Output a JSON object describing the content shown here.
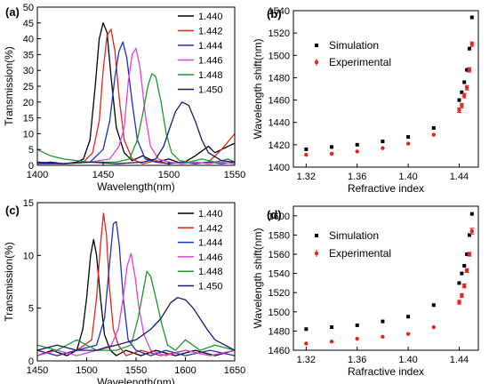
{
  "panels": [
    {
      "label": "(a)",
      "chart_data": {
        "type": "line",
        "xlabel": "Wavelength(nm)",
        "ylabel": "Transmission(%)",
        "xlim": [
          1400,
          1550
        ],
        "ylim": [
          0,
          50
        ],
        "xticks": [
          1400,
          1450,
          1500,
          1550
        ],
        "yticks": [
          0,
          5,
          10,
          15,
          20,
          25,
          30,
          35,
          40,
          45,
          50
        ],
        "legend_position": "top-right",
        "series": [
          {
            "name": "1.440",
            "color": "#000000",
            "x": [
              1400,
              1410,
              1420,
              1430,
              1435,
              1440,
              1444,
              1447,
              1450,
              1453,
              1456,
              1460,
              1466,
              1472,
              1480,
              1490,
              1500,
              1510,
              1520,
              1530,
              1535,
              1540,
              1545,
              1550
            ],
            "y": [
              0.5,
              1,
              0.5,
              1,
              2,
              8,
              25,
              40,
              45,
              42,
              28,
              12,
              4,
              1.5,
              3,
              1,
              2,
              0.5,
              3,
              6,
              4,
              5,
              6,
              7
            ]
          },
          {
            "name": "1.442",
            "color": "#e8231c",
            "x": [
              1400,
              1420,
              1435,
              1442,
              1447,
              1450,
              1453,
              1456,
              1459,
              1462,
              1466,
              1472,
              1480,
              1490,
              1500,
              1510,
              1520,
              1530,
              1540,
              1550
            ],
            "y": [
              1,
              0.5,
              1,
              4,
              14,
              30,
              41,
              43,
              36,
              22,
              8,
              2,
              0.5,
              1.5,
              0.5,
              1,
              0.5,
              1,
              5,
              10
            ]
          },
          {
            "name": "1.444",
            "color": "#1f2fbf",
            "x": [
              1400,
              1420,
              1440,
              1450,
              1455,
              1459,
              1462,
              1465,
              1468,
              1472,
              1476,
              1482,
              1490,
              1500,
              1510,
              1520,
              1530,
              1540,
              1550
            ],
            "y": [
              0.5,
              0.5,
              1,
              5,
              14,
              28,
              36,
              39,
              34,
              20,
              8,
              2,
              1,
              0.5,
              1,
              0.5,
              1,
              0.5,
              1
            ]
          },
          {
            "name": "1.446",
            "color": "#e040e0",
            "x": [
              1400,
              1420,
              1440,
              1455,
              1462,
              1466,
              1469,
              1472,
              1475,
              1478,
              1482,
              1486,
              1492,
              1500,
              1510,
              1520,
              1530,
              1540,
              1550
            ],
            "y": [
              1,
              0.5,
              1,
              2,
              6,
              12,
              26,
              35,
              37,
              31,
              16,
              6,
              2,
              1,
              0.5,
              1,
              0.5,
              1,
              0.5
            ]
          },
          {
            "name": "1.448",
            "color": "#1b9a2a",
            "x": [
              1400,
              1410,
              1420,
              1430,
              1440,
              1450,
              1460,
              1470,
              1476,
              1480,
              1484,
              1487,
              1490,
              1494,
              1498,
              1502,
              1508,
              1515,
              1525,
              1535,
              1545,
              1550
            ],
            "y": [
              5,
              3,
              2,
              1.5,
              1,
              1,
              1,
              2,
              8,
              16,
              25,
              29,
              28,
              20,
              10,
              4,
              1.5,
              1,
              2,
              1,
              2,
              1
            ]
          },
          {
            "name": "1.450",
            "color": "#191970",
            "x": [
              1400,
              1420,
              1440,
              1460,
              1480,
              1490,
              1496,
              1500,
              1505,
              1510,
              1515,
              1520,
              1525,
              1530,
              1540,
              1550
            ],
            "y": [
              1,
              0.5,
              1,
              0.5,
              1,
              2,
              6,
              11,
              17,
              20,
              19,
              14,
              8,
              4,
              1.5,
              1
            ]
          }
        ]
      }
    },
    {
      "label": "(b)",
      "chart_data": {
        "type": "scatter",
        "xlabel": "Refractive index",
        "ylabel": "Wavelength shift(nm)",
        "xlim": [
          1.31,
          1.455
        ],
        "ylim": [
          1400,
          1540
        ],
        "xticks": [
          1.32,
          1.36,
          1.4,
          1.44
        ],
        "xtick_labels": [
          "1.32",
          "1.36",
          "1.40",
          "1.44"
        ],
        "yticks": [
          1400,
          1420,
          1440,
          1460,
          1480,
          1500,
          1520,
          1540
        ],
        "legend_position": "top-left",
        "series": [
          {
            "name": "Simulation",
            "color": "#000000",
            "marker": "square",
            "x": [
              1.32,
              1.34,
              1.36,
              1.38,
              1.4,
              1.42,
              1.44,
              1.442,
              1.444,
              1.446,
              1.448,
              1.45
            ],
            "y": [
              1416,
              1418,
              1420,
              1423,
              1427,
              1435,
              1460,
              1467,
              1476,
              1487,
              1506,
              1534
            ]
          },
          {
            "name": "Experimental",
            "color": "#e8231c",
            "marker": "dot",
            "x": [
              1.32,
              1.34,
              1.36,
              1.38,
              1.4,
              1.42,
              1.44,
              1.442,
              1.444,
              1.446,
              1.448,
              1.45
            ],
            "y": [
              1411,
              1412,
              1414,
              1417,
              1421,
              1429,
              1451,
              1455,
              1464,
              1471,
              1487,
              1510
            ],
            "err": [
              0,
              0,
              0,
              0,
              0,
              0,
              2,
              2,
              2,
              2,
              2,
              2
            ]
          }
        ]
      }
    },
    {
      "label": "(c)",
      "chart_data": {
        "type": "line",
        "xlabel": "Wavelength(nm)",
        "ylabel": "Transmission(%)",
        "xlim": [
          1450,
          1650
        ],
        "ylim": [
          0,
          15
        ],
        "xticks": [
          1450,
          1500,
          1550,
          1600,
          1650
        ],
        "yticks": [
          0,
          5,
          10,
          15
        ],
        "legend_position": "top-right",
        "series": [
          {
            "name": "1.440",
            "color": "#000000",
            "x": [
              1450,
              1465,
              1480,
              1490,
              1496,
              1500,
              1504,
              1507,
              1510,
              1514,
              1518,
              1524,
              1530,
              1540,
              1555,
              1570,
              1590,
              1610,
              1630,
              1650
            ],
            "y": [
              0.5,
              1,
              0.5,
              1,
              3,
              6,
              10,
              11.5,
              10,
              6,
              2.5,
              1,
              0.5,
              1,
              0.5,
              1,
              0.5,
              1,
              0.5,
              1
            ]
          },
          {
            "name": "1.442",
            "color": "#e8231c",
            "x": [
              1450,
              1470,
              1490,
              1505,
              1510,
              1514,
              1517,
              1520,
              1523,
              1527,
              1532,
              1540,
              1555,
              1575,
              1600,
              1625,
              1650
            ],
            "y": [
              1,
              0.5,
              1,
              2,
              6,
              11,
              14,
              12,
              7,
              3,
              1.5,
              0.5,
              1,
              0.5,
              1,
              0.5,
              1
            ]
          },
          {
            "name": "1.444",
            "color": "#1f2fbf",
            "x": [
              1450,
              1470,
              1490,
              1510,
              1518,
              1523,
              1527,
              1530,
              1533,
              1537,
              1542,
              1550,
              1565,
              1580,
              1600,
              1625,
              1650
            ],
            "y": [
              1,
              0.5,
              1,
              1.5,
              4,
              9,
              13,
              13.2,
              11,
              6,
              2,
              1,
              0.5,
              1,
              0.5,
              1,
              0.5
            ]
          },
          {
            "name": "1.446",
            "color": "#e040e0",
            "x": [
              1450,
              1470,
              1490,
              1510,
              1525,
              1532,
              1537,
              1541,
              1545,
              1549,
              1553,
              1558,
              1565,
              1580,
              1600,
              1625,
              1650
            ],
            "y": [
              0.5,
              1,
              0.5,
              1,
              1.5,
              3,
              6,
              9,
              10.2,
              8,
              5,
              2.5,
              1,
              0.5,
              1,
              0.5,
              1
            ]
          },
          {
            "name": "1.448",
            "color": "#1b9a2a",
            "x": [
              1450,
              1470,
              1490,
              1510,
              1530,
              1545,
              1552,
              1557,
              1561,
              1565,
              1570,
              1576,
              1582,
              1590,
              1600,
              1615,
              1630,
              1650
            ],
            "y": [
              1.5,
              1,
              2,
              1,
              1,
              1.5,
              4,
              6.5,
              8.5,
              8,
              6,
              3.5,
              1.5,
              1,
              2,
              1,
              1.5,
              1
            ]
          },
          {
            "name": "1.450",
            "color": "#191970",
            "x": [
              1450,
              1470,
              1490,
              1510,
              1530,
              1550,
              1565,
              1575,
              1585,
              1592,
              1600,
              1608,
              1615,
              1622,
              1630,
              1640,
              1650
            ],
            "y": [
              1,
              1.5,
              1,
              1,
              1.5,
              2,
              3,
              4,
              5.5,
              6,
              5.8,
              5,
              4,
              3,
              2,
              1.5,
              1
            ]
          }
        ]
      }
    },
    {
      "label": "(d)",
      "chart_data": {
        "type": "scatter",
        "xlabel": "Rafractive index",
        "ylabel": "Wavelength shift(nm)",
        "xlim": [
          1.31,
          1.455
        ],
        "ylim": [
          1460,
          1610
        ],
        "xticks": [
          1.32,
          1.36,
          1.4,
          1.44
        ],
        "xtick_labels": [
          "1.32",
          "1.36",
          "1.40",
          "1.44"
        ],
        "yticks": [
          1460,
          1480,
          1500,
          1520,
          1540,
          1560,
          1580,
          1600
        ],
        "legend_position": "top-left",
        "series": [
          {
            "name": "Simulation",
            "color": "#000000",
            "marker": "square",
            "x": [
              1.32,
              1.34,
              1.36,
              1.38,
              1.4,
              1.42,
              1.44,
              1.442,
              1.444,
              1.446,
              1.448,
              1.45
            ],
            "y": [
              1482,
              1484,
              1486,
              1490,
              1495,
              1507,
              1530,
              1540,
              1548,
              1560,
              1580,
              1602
            ]
          },
          {
            "name": "Experimental",
            "color": "#e8231c",
            "marker": "dot",
            "x": [
              1.32,
              1.34,
              1.36,
              1.38,
              1.4,
              1.42,
              1.44,
              1.442,
              1.444,
              1.446,
              1.448,
              1.45
            ],
            "y": [
              1467,
              1469,
              1472,
              1474,
              1477,
              1484,
              1510,
              1517,
              1527,
              1543,
              1560,
              1584
            ],
            "err": [
              0,
              0,
              0,
              0,
              0,
              0,
              2,
              2,
              2,
              2,
              2,
              3
            ]
          }
        ]
      }
    }
  ]
}
